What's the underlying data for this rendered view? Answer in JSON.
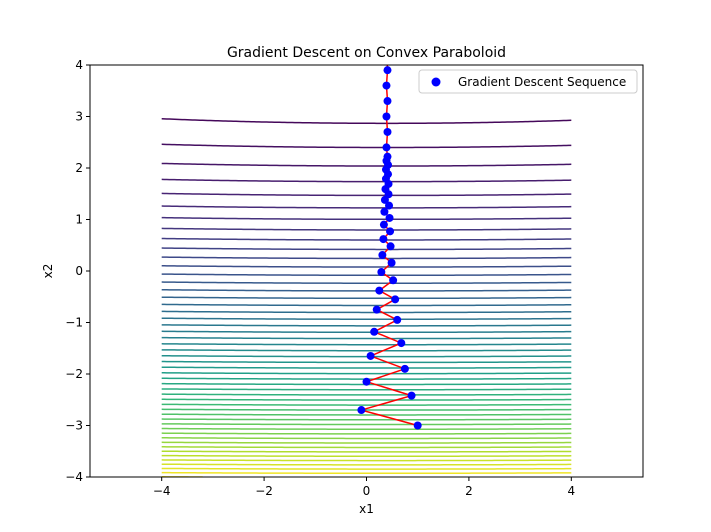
{
  "chart_data": {
    "type": "contour+line+scatter",
    "title": "Gradient Descent on Convex Paraboloid",
    "xlabel": "x1",
    "ylabel": "x2",
    "xlim": [
      -5.4,
      5.4
    ],
    "ylim": [
      -4,
      4
    ],
    "x_ticks": [
      -4,
      -2,
      0,
      2,
      4
    ],
    "y_ticks": [
      -4,
      -3,
      -2,
      -1,
      0,
      1,
      2,
      3,
      4
    ],
    "x_tick_labels": [
      "−4",
      "−2",
      "0",
      "2",
      "4"
    ],
    "y_tick_labels": [
      "−4",
      "−3",
      "−2",
      "−1",
      "0",
      "1",
      "2",
      "3",
      "4"
    ],
    "legend": {
      "label": "Gradient Descent Sequence",
      "position": "upper right"
    },
    "contour": {
      "x_range": [
        -4,
        4
      ],
      "y_range": [
        -4,
        4
      ],
      "colormap": "viridis",
      "level_count": 50,
      "center": [
        0.4,
        4.0
      ]
    },
    "points": [
      {
        "x": 1.0,
        "y": -3.0
      },
      {
        "x": -0.1,
        "y": -2.7
      },
      {
        "x": 0.88,
        "y": -2.42
      },
      {
        "x": 0.0,
        "y": -2.15
      },
      {
        "x": 0.75,
        "y": -1.9
      },
      {
        "x": 0.08,
        "y": -1.65
      },
      {
        "x": 0.68,
        "y": -1.4
      },
      {
        "x": 0.15,
        "y": -1.18
      },
      {
        "x": 0.6,
        "y": -0.95
      },
      {
        "x": 0.2,
        "y": -0.75
      },
      {
        "x": 0.56,
        "y": -0.55
      },
      {
        "x": 0.25,
        "y": -0.38
      },
      {
        "x": 0.52,
        "y": -0.18
      },
      {
        "x": 0.29,
        "y": -0.02
      },
      {
        "x": 0.49,
        "y": 0.16
      },
      {
        "x": 0.31,
        "y": 0.31
      },
      {
        "x": 0.47,
        "y": 0.48
      },
      {
        "x": 0.33,
        "y": 0.62
      },
      {
        "x": 0.46,
        "y": 0.77
      },
      {
        "x": 0.34,
        "y": 0.9
      },
      {
        "x": 0.45,
        "y": 1.03
      },
      {
        "x": 0.35,
        "y": 1.15
      },
      {
        "x": 0.44,
        "y": 1.27
      },
      {
        "x": 0.36,
        "y": 1.38
      },
      {
        "x": 0.43,
        "y": 1.49
      },
      {
        "x": 0.37,
        "y": 1.59
      },
      {
        "x": 0.43,
        "y": 1.69
      },
      {
        "x": 0.38,
        "y": 1.79
      },
      {
        "x": 0.42,
        "y": 1.88
      },
      {
        "x": 0.38,
        "y": 1.97
      },
      {
        "x": 0.42,
        "y": 2.06
      },
      {
        "x": 0.39,
        "y": 2.14
      },
      {
        "x": 0.41,
        "y": 2.22
      },
      {
        "x": 0.39,
        "y": 2.4
      },
      {
        "x": 0.41,
        "y": 2.7
      },
      {
        "x": 0.39,
        "y": 3.0
      },
      {
        "x": 0.41,
        "y": 3.3
      },
      {
        "x": 0.39,
        "y": 3.6
      },
      {
        "x": 0.41,
        "y": 3.9
      },
      {
        "x": 0.4,
        "y": 4.2
      }
    ],
    "colors": {
      "point": "#0000ff",
      "path": "#ff0000",
      "frame": "#000000"
    }
  }
}
